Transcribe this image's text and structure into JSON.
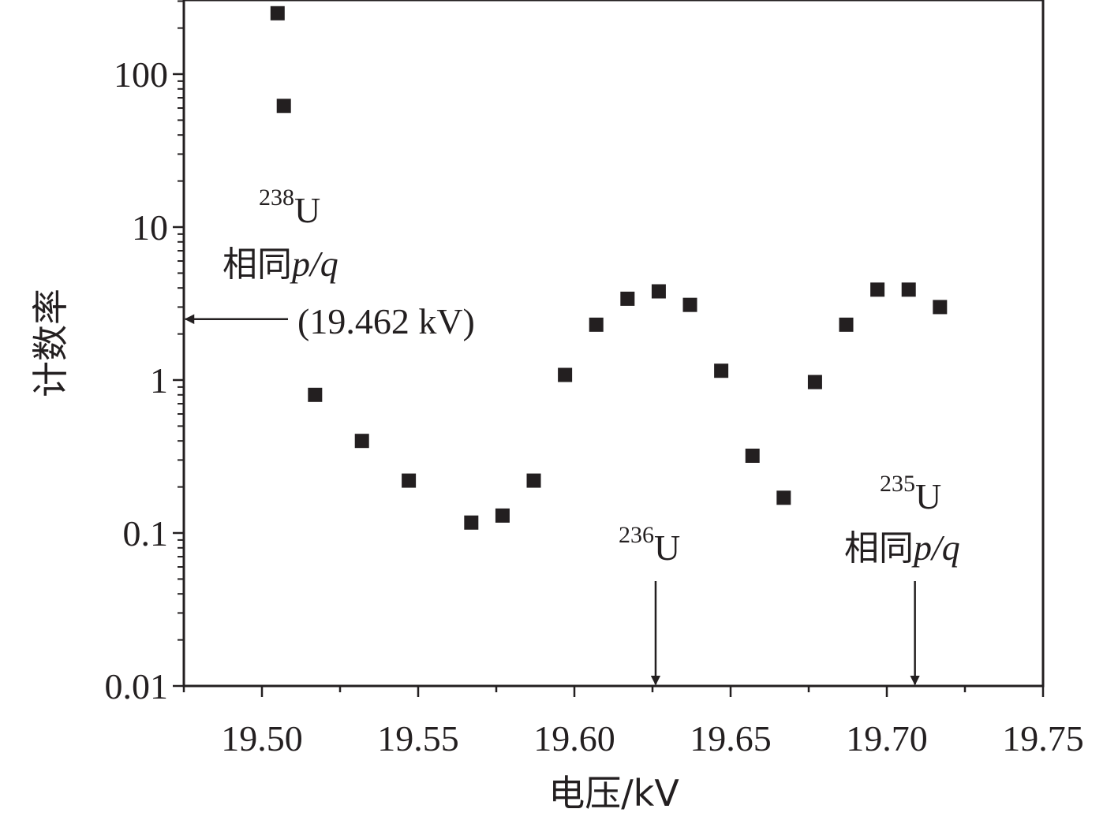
{
  "chart_data": {
    "type": "scatter",
    "xlabel": "电压/kV",
    "ylabel": "计数率",
    "xlim": [
      19.475,
      19.75
    ],
    "ylim": [
      0.01,
      300
    ],
    "yscale": "log",
    "x_ticks": [
      "19.50",
      "19.55",
      "19.60",
      "19.65",
      "19.70",
      "19.75"
    ],
    "y_ticks": [
      "0.01",
      "0.1",
      "1",
      "10",
      "100"
    ],
    "grid": false,
    "legend": "none",
    "marker": "square",
    "color": "#231f20",
    "points": [
      {
        "x": 19.505,
        "y": 250
      },
      {
        "x": 19.507,
        "y": 62
      },
      {
        "x": 19.517,
        "y": 0.8
      },
      {
        "x": 19.532,
        "y": 0.4
      },
      {
        "x": 19.547,
        "y": 0.22
      },
      {
        "x": 19.567,
        "y": 0.117
      },
      {
        "x": 19.577,
        "y": 0.13
      },
      {
        "x": 19.587,
        "y": 0.22
      },
      {
        "x": 19.597,
        "y": 1.08
      },
      {
        "x": 19.607,
        "y": 2.3
      },
      {
        "x": 19.617,
        "y": 3.4
      },
      {
        "x": 19.627,
        "y": 3.8
      },
      {
        "x": 19.637,
        "y": 3.1
      },
      {
        "x": 19.647,
        "y": 1.15
      },
      {
        "x": 19.657,
        "y": 0.32
      },
      {
        "x": 19.667,
        "y": 0.17
      },
      {
        "x": 19.677,
        "y": 0.97
      },
      {
        "x": 19.687,
        "y": 2.3
      },
      {
        "x": 19.697,
        "y": 3.9
      },
      {
        "x": 19.707,
        "y": 3.9
      },
      {
        "x": 19.717,
        "y": 3.0
      }
    ],
    "annotations": {
      "u238": {
        "isotope_sup": "238",
        "isotope": "U",
        "line2_cjk": "相同",
        "line2_ital": "p/q",
        "voltage": "(19.462 kV)",
        "arrow_y": 2.5
      },
      "u236": {
        "isotope_sup": "236",
        "isotope": "U",
        "arrow_x": 19.626
      },
      "u235": {
        "isotope_sup": "235",
        "isotope": "U",
        "line2_cjk": "相同",
        "line2_ital": "p/q",
        "arrow_x": 19.709
      }
    }
  }
}
